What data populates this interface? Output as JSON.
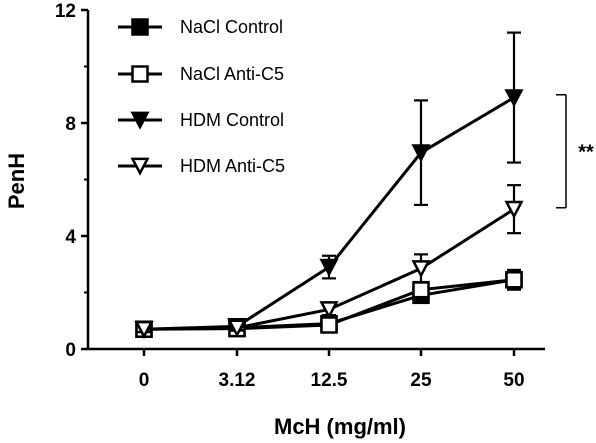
{
  "chart_data": {
    "type": "line",
    "title": "",
    "xlabel": "McH (mg/ml)",
    "ylabel": "PenH",
    "categories": [
      "0",
      "3.12",
      "12.5",
      "25",
      "50"
    ],
    "ylim": [
      0,
      12
    ],
    "yticks": [
      "0",
      "4",
      "8",
      "12"
    ],
    "legend_position": "top-left",
    "grid": false,
    "series": [
      {
        "name": "NaCl Control",
        "marker": "square-filled",
        "values": [
          0.7,
          0.75,
          0.9,
          1.9,
          2.45
        ],
        "errors": [
          0.1,
          0.1,
          0.12,
          0.2,
          0.35
        ]
      },
      {
        "name": "NaCl Anti-C5",
        "marker": "square-open",
        "values": [
          0.7,
          0.72,
          0.85,
          2.1,
          2.45
        ],
        "errors": [
          0.1,
          0.1,
          0.12,
          0.25,
          0.3
        ]
      },
      {
        "name": "HDM Control",
        "marker": "triangle-down-filled",
        "values": [
          0.7,
          0.8,
          2.9,
          6.95,
          8.9
        ],
        "errors": [
          0.1,
          0.12,
          0.4,
          1.85,
          2.3
        ]
      },
      {
        "name": "HDM Anti-C5",
        "marker": "triangle-down-open",
        "values": [
          0.7,
          0.75,
          1.4,
          2.85,
          4.95
        ],
        "errors": [
          0.1,
          0.1,
          0.2,
          0.5,
          0.85
        ]
      }
    ],
    "annotation": {
      "text": "**",
      "bracket_from": 5.0,
      "bracket_to": 9.0
    }
  }
}
